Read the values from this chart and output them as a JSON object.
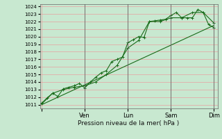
{
  "xlabel": "Pression niveau de la mer( hPa )",
  "ylim": [
    1011,
    1024
  ],
  "yticks": [
    1011,
    1012,
    1013,
    1014,
    1015,
    1016,
    1017,
    1018,
    1019,
    1020,
    1021,
    1022,
    1023,
    1024
  ],
  "xtick_positions": [
    0,
    48,
    96,
    144,
    192
  ],
  "xtick_labels": [
    "",
    "Ven",
    "Lun",
    "Sam",
    "Dim"
  ],
  "bg_color": "#c8e8d0",
  "grid_color": "#e8a0a0",
  "line_color": "#1a6b1a",
  "line1": {
    "x": [
      0,
      6,
      12,
      18,
      24,
      30,
      36,
      42,
      48,
      54,
      60,
      66,
      72,
      78,
      84,
      90,
      96,
      102,
      108,
      114,
      120,
      126,
      132,
      138,
      144,
      150,
      156,
      162,
      168,
      174,
      180,
      186,
      192
    ],
    "y": [
      1011.2,
      1011.9,
      1012.5,
      1012.1,
      1013.1,
      1013.3,
      1013.5,
      1013.8,
      1013.2,
      1014.0,
      1014.6,
      1015.2,
      1015.5,
      1016.7,
      1017.0,
      1017.3,
      1019.2,
      1019.6,
      1020.0,
      1019.9,
      1022.0,
      1022.1,
      1022.2,
      1022.3,
      1022.8,
      1023.2,
      1022.5,
      1022.5,
      1022.5,
      1023.6,
      1023.2,
      1021.6,
      1021.2
    ]
  },
  "line2": {
    "x": [
      0,
      12,
      24,
      36,
      48,
      60,
      72,
      84,
      96,
      108,
      120,
      132,
      144,
      156,
      168,
      180,
      192
    ],
    "y": [
      1011.1,
      1012.5,
      1013.0,
      1013.3,
      1013.5,
      1014.0,
      1015.0,
      1016.2,
      1018.5,
      1019.5,
      1022.0,
      1022.0,
      1022.5,
      1022.5,
      1023.2,
      1023.2,
      1021.8
    ]
  },
  "line3": {
    "x": [
      0,
      192
    ],
    "y": [
      1011.0,
      1021.5
    ]
  }
}
